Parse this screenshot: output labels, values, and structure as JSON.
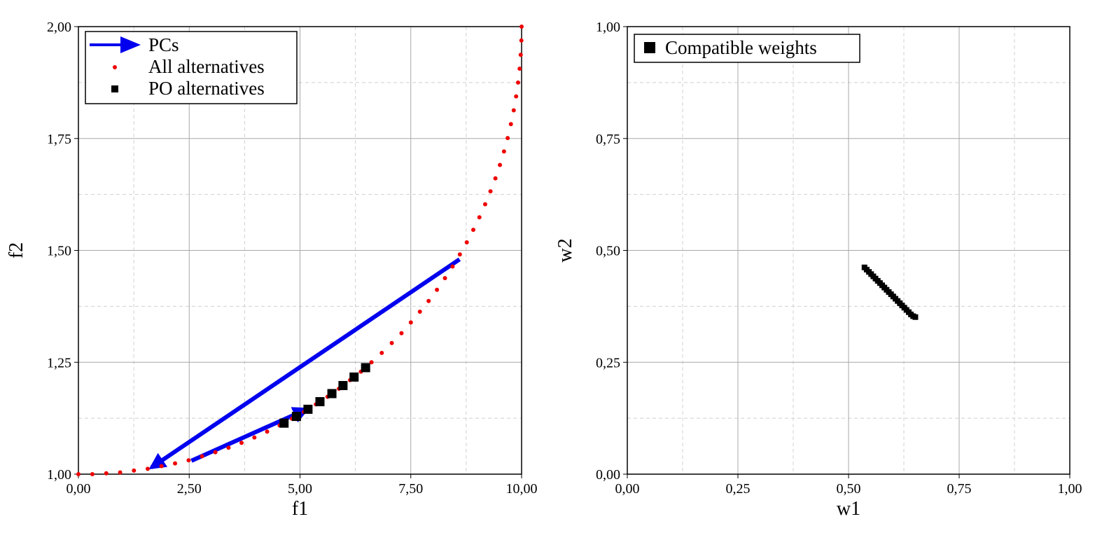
{
  "chart_data": [
    {
      "type": "scatter",
      "xlabel": "f1",
      "ylabel": "f2",
      "xlim": [
        0,
        10
      ],
      "ylim": [
        1,
        2
      ],
      "xticks": [
        0,
        2.5,
        5,
        7.5,
        10
      ],
      "xtick_labels": [
        "0,00",
        "2,50",
        "5,00",
        "7,50",
        "10,00"
      ],
      "yticks": [
        1,
        1.25,
        1.5,
        1.75,
        2
      ],
      "ytick_labels": [
        "1,00",
        "1,25",
        "1,50",
        "1,75",
        "2,00"
      ],
      "grid": true,
      "legend_position": "top-left",
      "legend": [
        "PCs",
        "All alternatives",
        "PO alternatives"
      ],
      "series": [
        {
          "name": "PCs",
          "kind": "arrows",
          "color": "#0000ee",
          "arrows": [
            {
              "from": [
                8.6,
                1.48
              ],
              "to": [
                1.65,
                1.015
              ]
            },
            {
              "from": [
                2.55,
                1.03
              ],
              "to": [
                5.15,
                1.145
              ]
            }
          ]
        },
        {
          "name": "All alternatives",
          "kind": "dots",
          "color": "#ee0000",
          "points": [
            [
              0,
              1.0
            ],
            [
              0.314,
              1.0
            ],
            [
              0.628,
              1.002
            ],
            [
              0.941,
              1.004
            ],
            [
              1.253,
              1.008
            ],
            [
              1.564,
              1.012
            ],
            [
              1.874,
              1.018
            ],
            [
              2.181,
              1.024
            ],
            [
              2.487,
              1.031
            ],
            [
              2.79,
              1.04
            ],
            [
              3.09,
              1.049
            ],
            [
              3.387,
              1.059
            ],
            [
              3.681,
              1.07
            ],
            [
              3.971,
              1.082
            ],
            [
              4.258,
              1.095
            ],
            [
              4.54,
              1.109
            ],
            [
              4.818,
              1.124
            ],
            [
              5.09,
              1.139
            ],
            [
              5.358,
              1.156
            ],
            [
              5.621,
              1.173
            ],
            [
              5.878,
              1.191
            ],
            [
              6.129,
              1.21
            ],
            [
              6.374,
              1.229
            ],
            [
              6.613,
              1.25
            ],
            [
              6.845,
              1.271
            ],
            [
              7.071,
              1.293
            ],
            [
              7.29,
              1.315
            ],
            [
              7.501,
              1.339
            ],
            [
              7.705,
              1.363
            ],
            [
              7.902,
              1.387
            ],
            [
              8.09,
              1.412
            ],
            [
              8.271,
              1.438
            ],
            [
              8.443,
              1.464
            ],
            [
              8.607,
              1.491
            ],
            [
              8.763,
              1.518
            ],
            [
              8.91,
              1.546
            ],
            [
              9.048,
              1.574
            ],
            [
              9.178,
              1.603
            ],
            [
              9.298,
              1.632
            ],
            [
              9.409,
              1.661
            ],
            [
              9.511,
              1.691
            ],
            [
              9.603,
              1.721
            ],
            [
              9.686,
              1.751
            ],
            [
              9.759,
              1.782
            ],
            [
              9.823,
              1.813
            ],
            [
              9.877,
              1.844
            ],
            [
              9.921,
              1.875
            ],
            [
              9.956,
              1.906
            ],
            [
              9.98,
              1.937
            ],
            [
              9.995,
              1.969
            ],
            [
              10,
              2.0
            ]
          ]
        },
        {
          "name": "PO alternatives",
          "kind": "squares",
          "color": "#000000",
          "points": [
            [
              4.64,
              1.114
            ],
            [
              4.92,
              1.129
            ],
            [
              5.18,
              1.145
            ],
            [
              5.45,
              1.162
            ],
            [
              5.72,
              1.18
            ],
            [
              5.97,
              1.198
            ],
            [
              6.22,
              1.217
            ],
            [
              6.48,
              1.238
            ]
          ]
        }
      ]
    },
    {
      "type": "scatter",
      "xlabel": "w1",
      "ylabel": "w2",
      "xlim": [
        0,
        1
      ],
      "ylim": [
        0,
        1
      ],
      "xticks": [
        0,
        0.25,
        0.5,
        0.75,
        1
      ],
      "xtick_labels": [
        "0,00",
        "0,25",
        "0,50",
        "0,75",
        "1,00"
      ],
      "yticks": [
        0,
        0.25,
        0.5,
        0.75,
        1
      ],
      "ytick_labels": [
        "0,00",
        "0,25",
        "0,50",
        "0,75",
        "1,00"
      ],
      "grid": true,
      "legend_position": "top-left",
      "legend": [
        "Compatible weights"
      ],
      "series": [
        {
          "name": "Compatible weights",
          "kind": "squares",
          "color": "#000000",
          "points": [
            [
              0.536,
              0.462
            ],
            [
              0.541,
              0.457
            ],
            [
              0.546,
              0.452
            ],
            [
              0.551,
              0.447
            ],
            [
              0.556,
              0.442
            ],
            [
              0.561,
              0.437
            ],
            [
              0.566,
              0.432
            ],
            [
              0.571,
              0.427
            ],
            [
              0.576,
              0.422
            ],
            [
              0.581,
              0.417
            ],
            [
              0.586,
              0.412
            ],
            [
              0.591,
              0.407
            ],
            [
              0.596,
              0.402
            ],
            [
              0.601,
              0.397
            ],
            [
              0.606,
              0.392
            ],
            [
              0.611,
              0.387
            ],
            [
              0.616,
              0.382
            ],
            [
              0.621,
              0.377
            ],
            [
              0.626,
              0.372
            ],
            [
              0.631,
              0.367
            ],
            [
              0.636,
              0.362
            ],
            [
              0.641,
              0.357
            ],
            [
              0.646,
              0.353
            ],
            [
              0.651,
              0.351
            ]
          ]
        }
      ]
    }
  ]
}
